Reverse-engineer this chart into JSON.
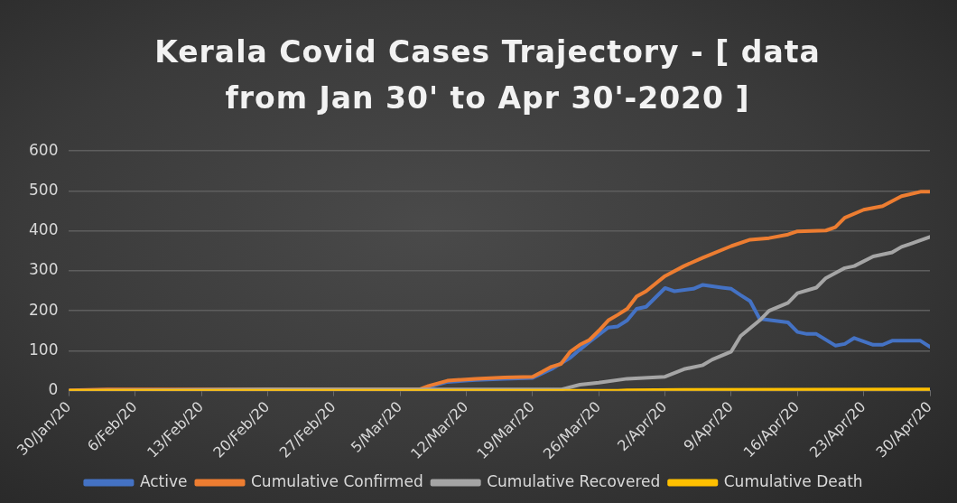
{
  "chart_data": {
    "type": "line",
    "title": "Kerala Covid Cases Trajectory - [ data from Jan 30' to Apr 30'-2020 ]",
    "xlim": [
      "2020-01-30",
      "2020-04-30"
    ],
    "xticks": [
      {
        "value": "2020-01-30",
        "label": "30/Jan/20"
      },
      {
        "value": "2020-02-06",
        "label": "6/Feb/20"
      },
      {
        "value": "2020-02-13",
        "label": "13/Feb/20"
      },
      {
        "value": "2020-02-20",
        "label": "20/Feb/20"
      },
      {
        "value": "2020-02-27",
        "label": "27/Feb/20"
      },
      {
        "value": "2020-03-05",
        "label": "5/Mar/20"
      },
      {
        "value": "2020-03-12",
        "label": "12/Mar/20"
      },
      {
        "value": "2020-03-19",
        "label": "19/Mar/20"
      },
      {
        "value": "2020-03-26",
        "label": "26/Mar/20"
      },
      {
        "value": "2020-04-02",
        "label": "2/Apr/20"
      },
      {
        "value": "2020-04-09",
        "label": "9/Apr/20"
      },
      {
        "value": "2020-04-16",
        "label": "16/Apr/20"
      },
      {
        "value": "2020-04-23",
        "label": "23/Apr/20"
      },
      {
        "value": "2020-04-30",
        "label": "30/Apr/20"
      }
    ],
    "ylim": [
      0,
      600
    ],
    "yticks": [
      0,
      100,
      200,
      300,
      400,
      500,
      600
    ],
    "grid": "y",
    "legend": "bottom",
    "marker": "none",
    "line_style": "solid",
    "series": [
      {
        "name": "Active",
        "color": "#4472c4",
        "x": [
          "2020-03-08",
          "2020-03-10",
          "2020-03-13",
          "2020-03-16",
          "2020-03-19",
          "2020-03-21",
          "2020-03-23",
          "2020-03-24",
          "2020-03-25",
          "2020-03-27",
          "2020-03-28",
          "2020-03-29",
          "2020-03-30",
          "2020-03-31",
          "2020-04-02",
          "2020-04-03",
          "2020-04-05",
          "2020-04-06",
          "2020-04-08",
          "2020-04-09",
          "2020-04-10",
          "2020-04-11",
          "2020-04-12",
          "2020-04-15",
          "2020-04-16",
          "2020-04-17",
          "2020-04-18",
          "2020-04-20",
          "2020-04-21",
          "2020-04-22",
          "2020-04-24",
          "2020-04-25",
          "2020-04-26",
          "2020-04-29",
          "2020-04-30"
        ],
        "values": [
          9,
          22,
          27,
          30,
          32,
          54,
          83,
          103,
          122,
          158,
          161,
          176,
          205,
          210,
          257,
          249,
          255,
          265,
          258,
          255,
          239,
          224,
          180,
          171,
          147,
          142,
          142,
          113,
          117,
          132,
          115,
          115,
          125,
          125,
          110
        ]
      },
      {
        "name": "Cumulative Confirmed",
        "color": "#ed7d31",
        "x": [
          "2020-01-30",
          "2020-02-03",
          "2020-03-07",
          "2020-03-08",
          "2020-03-10",
          "2020-03-13",
          "2020-03-16",
          "2020-03-19",
          "2020-03-20",
          "2020-03-21",
          "2020-03-22",
          "2020-03-23",
          "2020-03-24",
          "2020-03-25",
          "2020-03-26",
          "2020-03-27",
          "2020-03-28",
          "2020-03-29",
          "2020-03-30",
          "2020-03-31",
          "2020-04-02",
          "2020-04-04",
          "2020-04-06",
          "2020-04-09",
          "2020-04-11",
          "2020-04-13",
          "2020-04-15",
          "2020-04-16",
          "2020-04-19",
          "2020-04-20",
          "2020-04-21",
          "2020-04-23",
          "2020-04-25",
          "2020-04-27",
          "2020-04-29",
          "2020-04-30"
        ],
        "values": [
          1,
          3,
          3,
          12,
          25,
          30,
          33,
          35,
          47,
          60,
          67,
          98,
          115,
          127,
          150,
          176,
          190,
          205,
          236,
          249,
          287,
          312,
          333,
          362,
          378,
          382,
          391,
          399,
          401,
          409,
          433,
          453,
          462,
          487,
          498,
          498
        ]
      },
      {
        "name": "Cumulative Recovered",
        "color": "#a5a5a5",
        "x": [
          "2020-01-30",
          "2020-02-20",
          "2020-03-22",
          "2020-03-24",
          "2020-03-26",
          "2020-03-29",
          "2020-04-02",
          "2020-04-04",
          "2020-04-06",
          "2020-04-07",
          "2020-04-09",
          "2020-04-10",
          "2020-04-12",
          "2020-04-13",
          "2020-04-15",
          "2020-04-16",
          "2020-04-18",
          "2020-04-19",
          "2020-04-21",
          "2020-04-22",
          "2020-04-24",
          "2020-04-26",
          "2020-04-27",
          "2020-04-28",
          "2020-04-30"
        ],
        "values": [
          0,
          3,
          3,
          15,
          20,
          30,
          35,
          54,
          64,
          78,
          98,
          137,
          176,
          200,
          220,
          244,
          258,
          282,
          307,
          312,
          336,
          346,
          360,
          368,
          385
        ]
      },
      {
        "name": "Cumulative Death",
        "color": "#ffc000",
        "x": [
          "2020-01-30",
          "2020-03-28",
          "2020-03-29",
          "2020-04-04",
          "2020-04-30"
        ],
        "values": [
          0,
          0,
          1,
          2,
          3
        ]
      }
    ]
  }
}
